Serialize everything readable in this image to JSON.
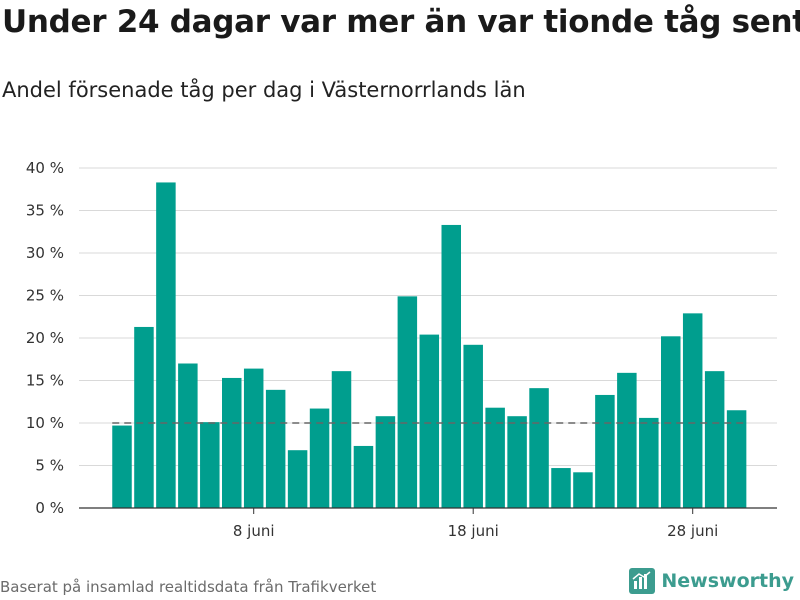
{
  "title": "Under 24 dagar var mer än var tionde tåg sent",
  "subtitle": "Andel försenade tåg per dag i Västernorrlands län",
  "source": "Baserat på insamlad realtidsdata från Trafikverket",
  "brand": "Newsworthy",
  "colors": {
    "bar": "#009e8e",
    "grid": "#d9d9d9",
    "axis": "#333333",
    "reference": "#666666",
    "brand": "#3c9c8f"
  },
  "chart_data": {
    "type": "bar",
    "categories": [
      "2 juni",
      "3 juni",
      "4 juni",
      "5 juni",
      "6 juni",
      "7 juni",
      "8 juni",
      "9 juni",
      "10 juni",
      "11 juni",
      "12 juni",
      "13 juni",
      "14 juni",
      "15 juni",
      "16 juni",
      "17 juni",
      "18 juni",
      "19 juni",
      "20 juni",
      "21 juni",
      "22 juni",
      "23 juni",
      "24 juni",
      "25 juni",
      "26 juni",
      "27 juni",
      "28 juni",
      "29 juni",
      "30 juni"
    ],
    "values": [
      9.7,
      21.3,
      38.3,
      17.0,
      10.1,
      15.3,
      16.4,
      13.9,
      6.8,
      11.7,
      16.1,
      7.3,
      10.8,
      24.9,
      20.4,
      33.3,
      19.2,
      11.8,
      10.8,
      14.1,
      4.7,
      4.2,
      13.3,
      15.9,
      10.6,
      20.2,
      22.9,
      16.1,
      11.5
    ],
    "y_ticks": [
      "0 %",
      "5 %",
      "10 %",
      "15 %",
      "20 %",
      "25 %",
      "30 %",
      "35 %",
      "40 %"
    ],
    "x_ticks": [
      {
        "label": "8 juni",
        "category": "8 juni"
      },
      {
        "label": "18 juni",
        "category": "18 juni"
      },
      {
        "label": "28 juni",
        "category": "28 juni"
      }
    ],
    "ylim": [
      0,
      40
    ],
    "reference_line": 10,
    "unit": "%",
    "grid": true,
    "xlabel": "",
    "ylabel": ""
  }
}
